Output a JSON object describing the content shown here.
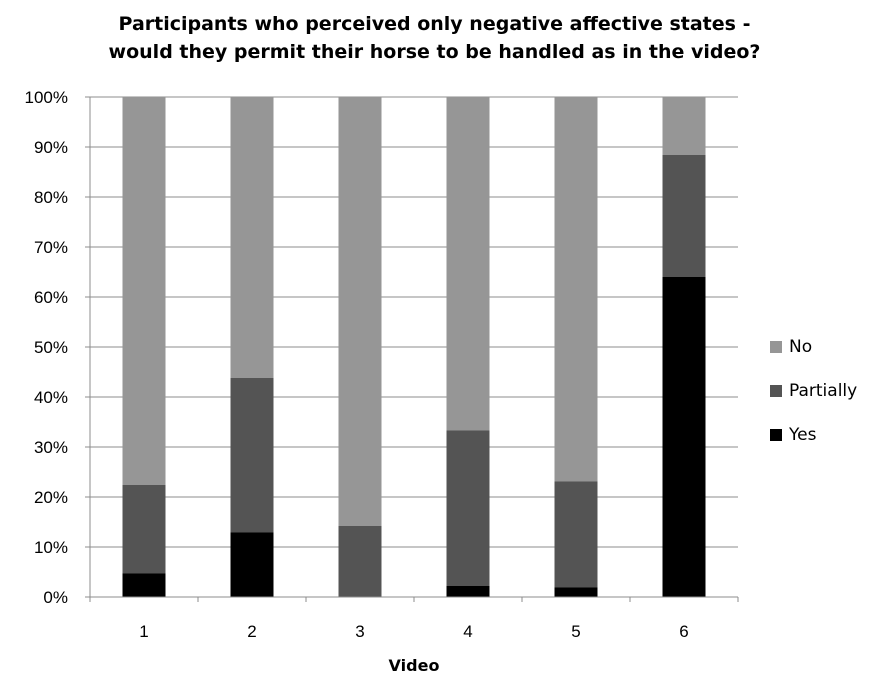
{
  "chart_data": {
    "type": "bar",
    "stacked": true,
    "title_lines": [
      "Participants who perceived only negative affective states -",
      "would they permit their horse to be handled as in the video?"
    ],
    "xlabel": "Video",
    "ylabel": "",
    "categories": [
      "1",
      "2",
      "3",
      "4",
      "5",
      "6"
    ],
    "y_ticks": [
      "0%",
      "10%",
      "20%",
      "30%",
      "40%",
      "50%",
      "60%",
      "70%",
      "80%",
      "90%",
      "100%"
    ],
    "ylim": [
      0,
      100
    ],
    "grid": true,
    "legend_position": "right",
    "series": [
      {
        "name": "Yes",
        "color": "#000000",
        "values": [
          4.7,
          12.9,
          0,
          2.2,
          1.9,
          64.0
        ]
      },
      {
        "name": "Partially",
        "color": "#545454",
        "values": [
          17.7,
          30.9,
          14.2,
          31.1,
          21.2,
          24.4
        ]
      },
      {
        "name": "No",
        "color": "#969696",
        "values": [
          77.6,
          56.2,
          85.8,
          66.7,
          76.9,
          11.6
        ]
      }
    ]
  }
}
